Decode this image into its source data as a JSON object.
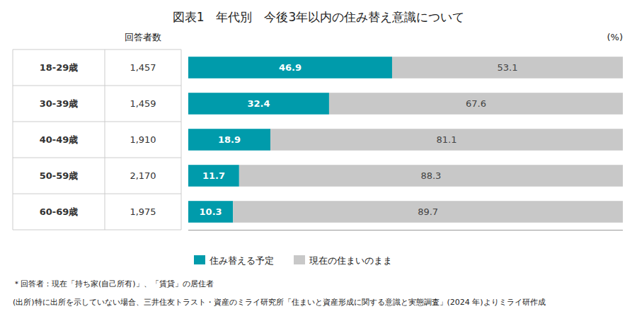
{
  "chart_data": {
    "type": "bar",
    "orientation": "horizontal",
    "stacked": true,
    "title": "図表1　年代別　今後3年以内の住み替え意識について",
    "xlabel": "(%)",
    "categories": [
      "18-29歳",
      "30-39歳",
      "40-49歳",
      "50-59歳",
      "60-69歳"
    ],
    "respondents": {
      "label": "回答者数",
      "values": [
        1457,
        1459,
        1910,
        2170,
        1975
      ],
      "value_labels": [
        "1,457",
        "1,459",
        "1,910",
        "2,170",
        "1,975"
      ]
    },
    "series": [
      {
        "name": "住み替える予定",
        "color": "#009bab",
        "values": [
          46.9,
          32.4,
          18.9,
          11.7,
          10.3
        ]
      },
      {
        "name": "現在の住まいのまま",
        "color": "#c8c8c8",
        "values": [
          53.1,
          67.6,
          81.1,
          88.3,
          89.7
        ]
      }
    ],
    "xlim": [
      0,
      100
    ],
    "grid": false,
    "legend": "bottom",
    "data_labels": true,
    "tick_labels": false,
    "footnotes": [
      "＊回答者：現在「持ち家(自己所有)」、「賃貸」の居住者",
      "(出所)特に出所を示していない場合、三井住友トラスト・資産のミライ研究所「住まいと資産形成に関する意識と実態調査」(2024 年)よりミライ研作成"
    ]
  }
}
